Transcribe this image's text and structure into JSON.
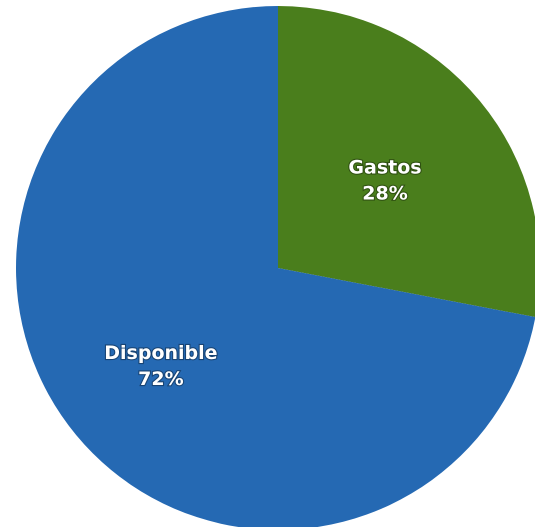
{
  "chart_data": {
    "type": "pie",
    "title": "",
    "start_angle": "12 o'clock",
    "direction": "clockwise",
    "slices": [
      {
        "label": "Gastos",
        "value": 28,
        "display": "28%",
        "color": "#4a7e1c"
      },
      {
        "label": "Disponible",
        "value": 72,
        "display": "72%",
        "color": "#2569b3"
      }
    ],
    "legend": "none"
  }
}
